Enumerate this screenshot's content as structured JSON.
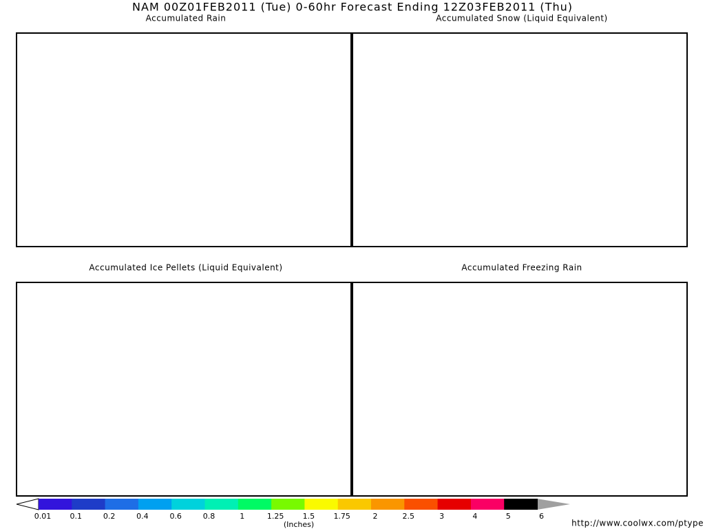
{
  "header": {
    "title": "NAM 00Z01FEB2011 (Tue) 0-60hr Forecast Ending 12Z03FEB2011 (Thu)"
  },
  "panels": [
    {
      "title": "Accumulated Rain"
    },
    {
      "title": "Accumulated Snow (Liquid Equivalent)"
    },
    {
      "title": "Accumulated Ice Pellets (Liquid Equivalent)"
    },
    {
      "title": "Accumulated Freezing Rain"
    }
  ],
  "legend": {
    "labels": [
      "0.01",
      "0.1",
      "0.2",
      "0.4",
      "0.6",
      "0.8",
      "1",
      "1.25",
      "1.5",
      "1.75",
      "2",
      "2.5",
      "3",
      "4",
      "5",
      "6"
    ],
    "units": "(Inches)"
  },
  "footer": {
    "url": "http://www.coolwx.com/ptype"
  }
}
